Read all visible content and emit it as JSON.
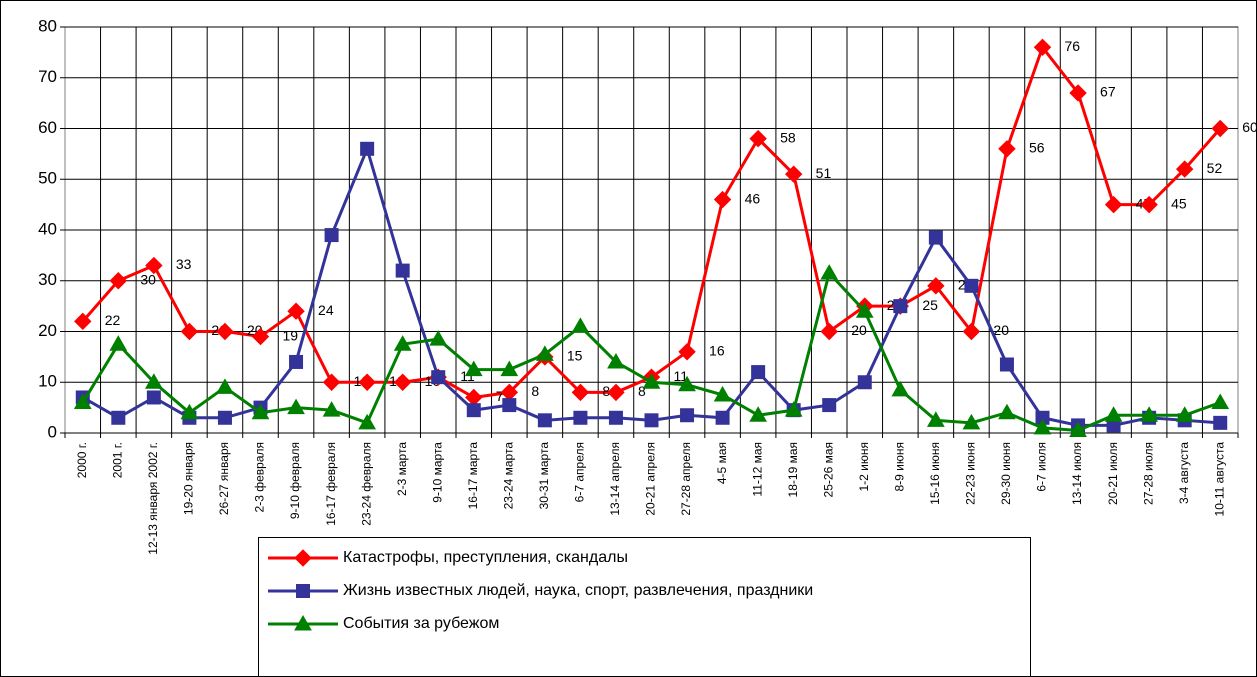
{
  "chart_data": {
    "type": "line",
    "categories": [
      "2000 г.",
      "2001 г.",
      "12-13 января 2002 г.",
      "19-20 января",
      "26-27 января",
      "2-3 февраля",
      "9-10 февраля",
      "16-17 февраля",
      "23-24 февраля",
      "2-3 марта",
      "9-10 марта",
      "16-17 марта",
      "23-24 марта",
      "30-31 марта",
      "6-7 апреля",
      "13-14 апреля",
      "20-21 апреля",
      "27-28 апреля",
      "4-5 мая",
      "11-12 мая",
      "18-19 мая",
      "25-26 мая",
      "1-2 июня",
      "8-9 июня",
      "15-16 июня",
      "22-23 июня",
      "29-30 июня",
      "6-7 июля",
      "13-14 июля",
      "20-21 июля",
      "27-28 июля",
      "3-4 августа",
      "10-11 августа"
    ],
    "series": [
      {
        "name": "Катастрофы, преступления, скандалы",
        "color": "#ff0000",
        "marker": "diamond",
        "labels": true,
        "values": [
          22,
          30,
          33,
          20,
          20,
          19,
          24,
          10,
          10,
          10,
          11,
          7,
          8,
          15,
          8,
          8,
          11,
          16,
          46,
          58,
          51,
          20,
          25,
          25,
          29,
          20,
          56,
          76,
          67,
          45,
          45,
          52,
          60
        ]
      },
      {
        "name": "Жизнь известных людей, наука, спорт, развлечения, праздники",
        "color": "#333399",
        "marker": "square",
        "values": [
          7,
          3,
          7,
          3,
          3,
          5,
          14,
          39,
          56,
          32,
          11,
          4.5,
          5.5,
          2.5,
          3,
          3,
          2.5,
          3.5,
          3,
          12,
          4.5,
          5.5,
          10,
          25,
          38.5,
          29,
          13.5,
          3,
          1.5,
          1.5,
          3,
          2.5,
          2
        ]
      },
      {
        "name": "События за рубежом",
        "color": "#008000",
        "marker": "triangle",
        "values": [
          6,
          17.5,
          10,
          4,
          9,
          4,
          5,
          4.5,
          2,
          17.5,
          18.5,
          12.5,
          12.5,
          15.5,
          21,
          14,
          10,
          9.5,
          7.5,
          3.5,
          4.5,
          31.5,
          24,
          8.5,
          2.5,
          2,
          4,
          1,
          0.5,
          3.5,
          3.5,
          3.5,
          6
        ]
      }
    ],
    "ylim": [
      0,
      80
    ],
    "yticks": [
      0,
      10,
      20,
      30,
      40,
      50,
      60,
      70,
      80
    ],
    "grid": true
  }
}
